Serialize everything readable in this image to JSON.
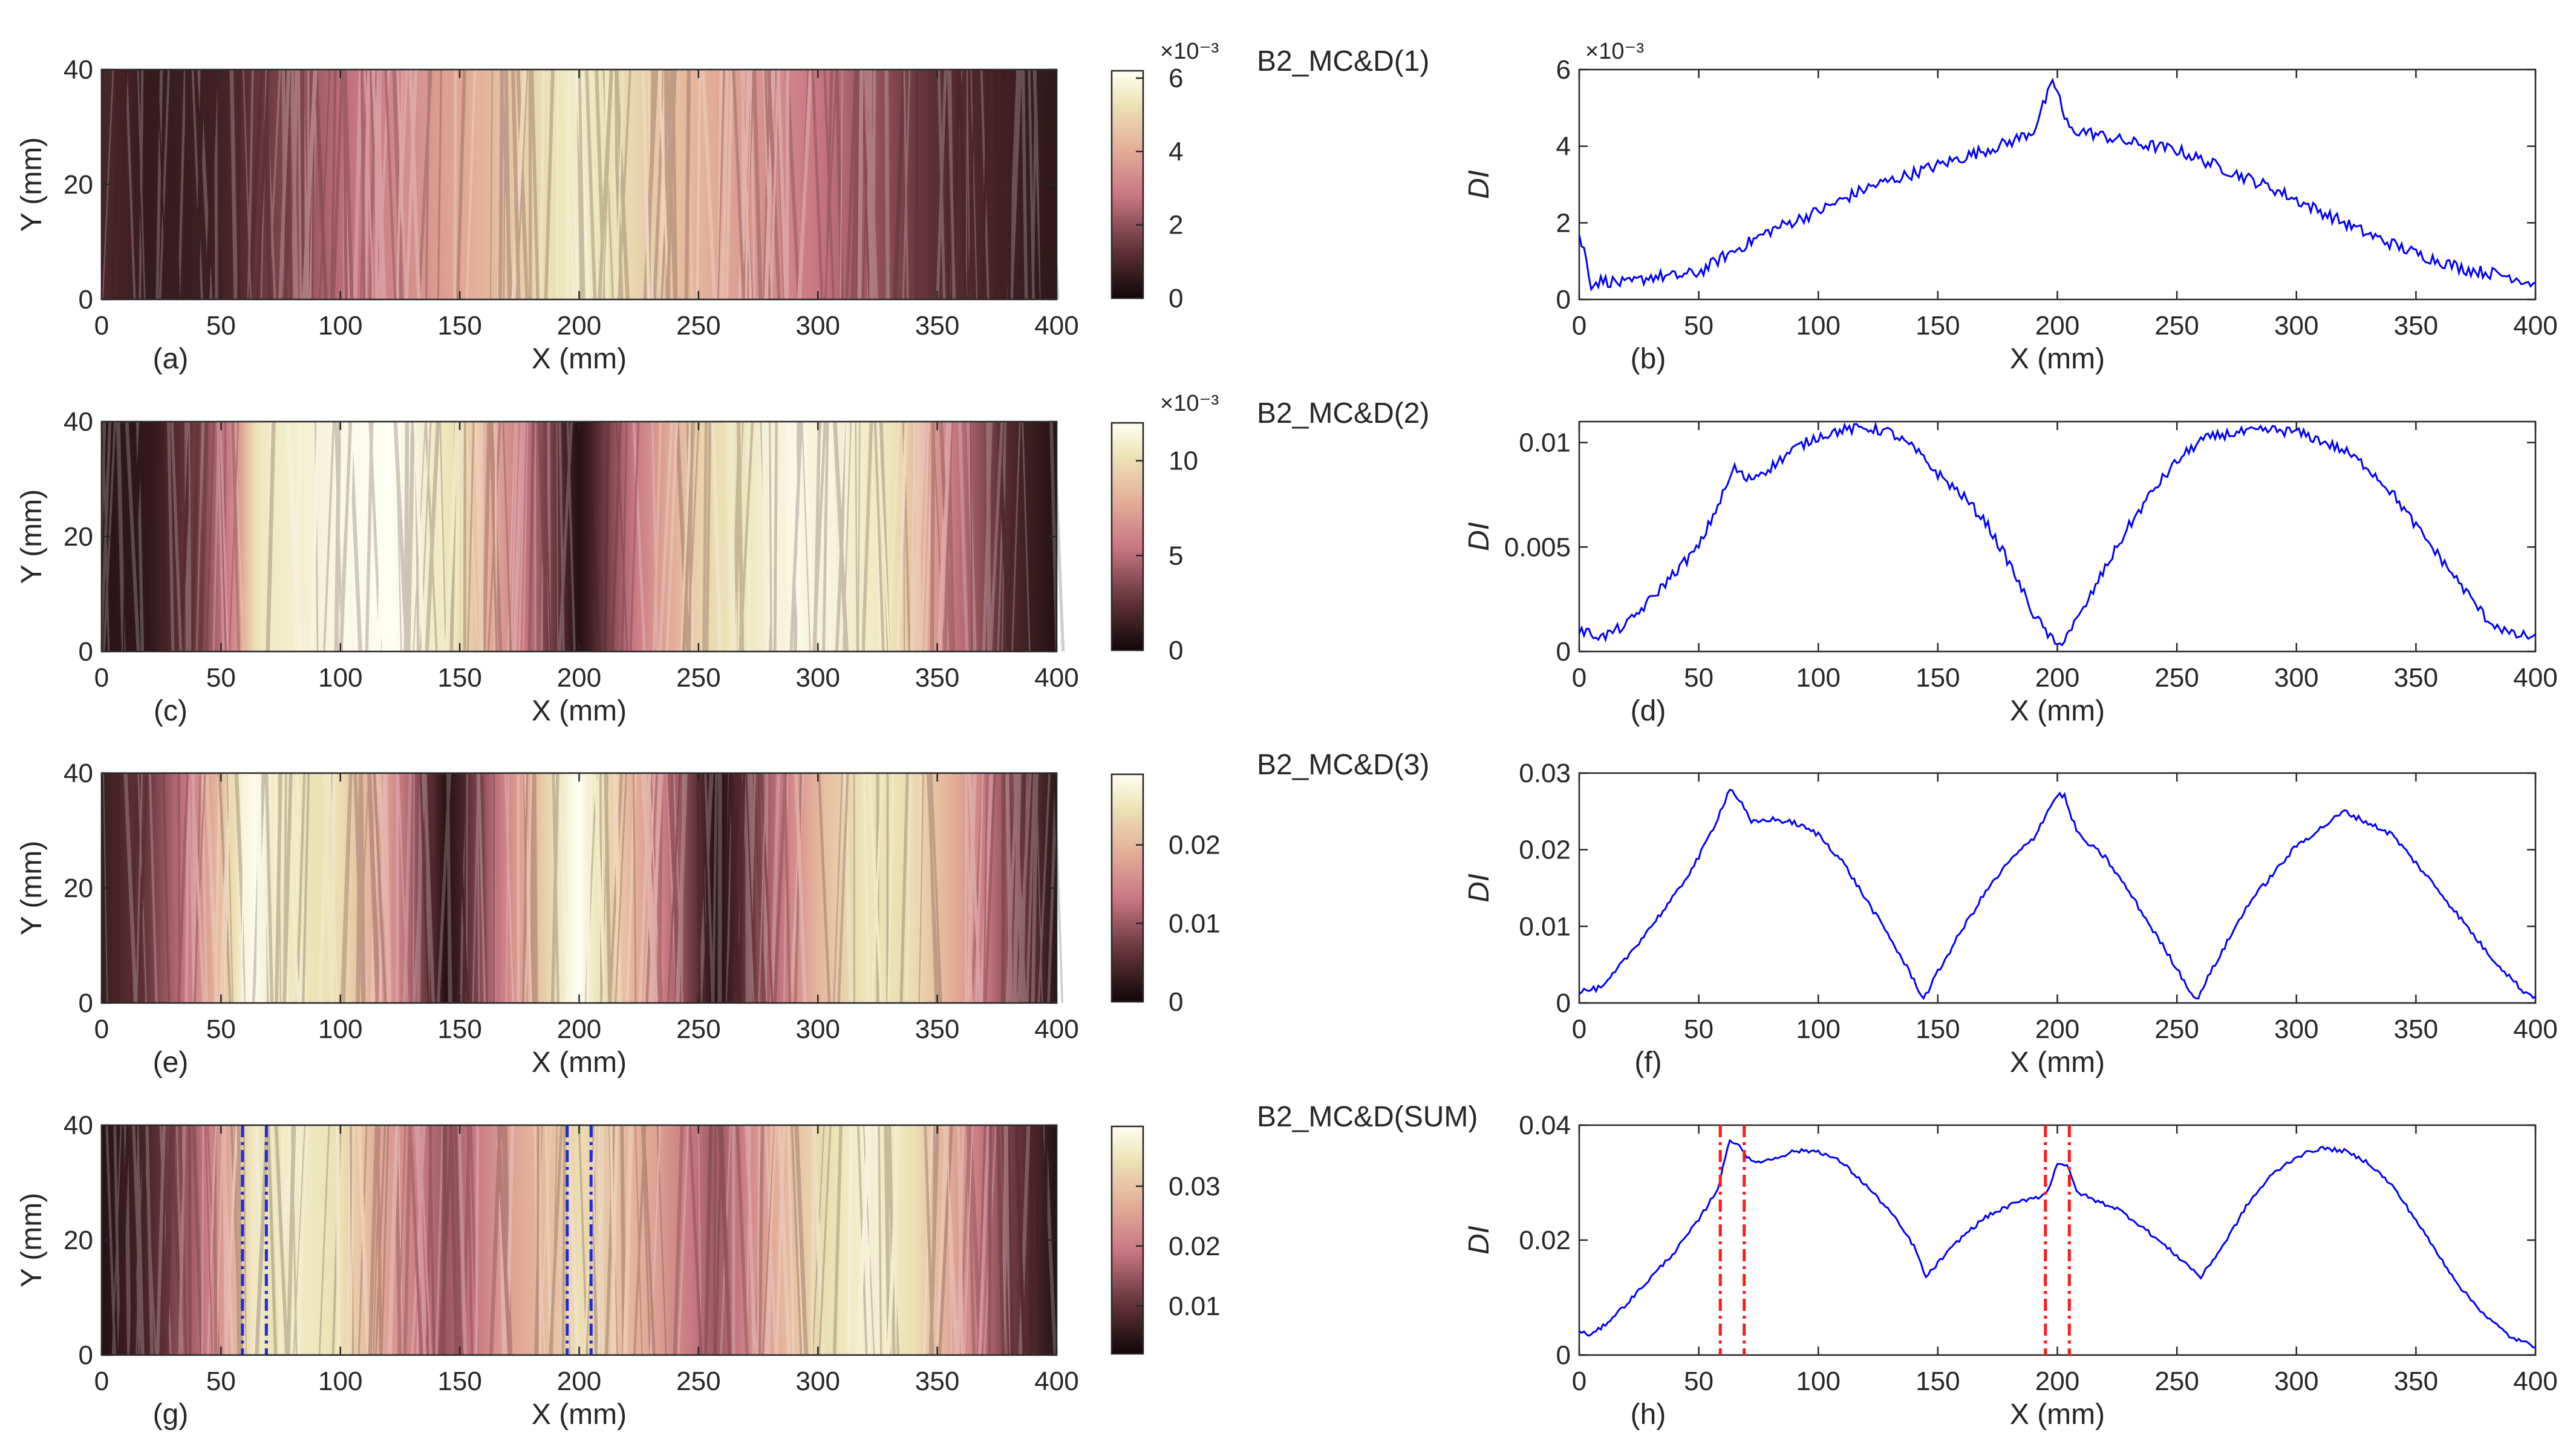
{
  "figure": {
    "colors": {
      "line": "#0000ff",
      "marker_heatmap": "#1f2bd6",
      "marker_line": "#ff1a1a",
      "axis": "#262626"
    }
  },
  "chart_data": [
    {
      "id": "a",
      "type": "heatmap",
      "panel_label": "(a)",
      "title": "",
      "xlabel": "X (mm)",
      "ylabel": "Y (mm)",
      "xlim": [
        0,
        400
      ],
      "ylim": [
        0,
        40
      ],
      "xticks": [
        0,
        50,
        100,
        150,
        200,
        250,
        300,
        350,
        400
      ],
      "yticks": [
        0,
        20,
        40
      ],
      "profile_x": [
        0,
        20,
        50,
        100,
        150,
        200,
        250,
        300,
        350,
        400
      ],
      "profile_v": [
        0.001,
        0.0006,
        0.0008,
        0.0026,
        0.0039,
        0.0056,
        0.0042,
        0.0028,
        0.0012,
        0.0005
      ],
      "colorbar": {
        "min": 0,
        "max": 0.0062,
        "ticks": [
          0,
          0.002,
          0.004,
          0.006
        ],
        "tick_labels": [
          "0",
          "2",
          "4",
          "6"
        ],
        "exponent": "×10⁻³"
      },
      "markers": []
    },
    {
      "id": "b",
      "type": "line",
      "panel_label": "(b)",
      "title": "B2_MC&D(1)",
      "xlabel": "X (mm)",
      "ylabel": "DI",
      "xlim": [
        0,
        400
      ],
      "ylim": [
        0,
        0.006
      ],
      "xticks": [
        0,
        50,
        100,
        150,
        200,
        250,
        300,
        350,
        400
      ],
      "yticks": [
        0,
        0.002,
        0.004,
        0.006
      ],
      "ytick_labels": [
        "0",
        "2",
        "4",
        "6"
      ],
      "exponent": "×10⁻³",
      "x": [
        0,
        2,
        5,
        10,
        20,
        30,
        40,
        50,
        60,
        80,
        100,
        120,
        140,
        160,
        180,
        190,
        195,
        198,
        200,
        203,
        206,
        210,
        230,
        250,
        270,
        290,
        310,
        330,
        350,
        370,
        390,
        400
      ],
      "y": [
        0.0016,
        0.0013,
        0.0004,
        0.0005,
        0.0004,
        0.0006,
        0.0006,
        0.0007,
        0.0011,
        0.0018,
        0.0023,
        0.0029,
        0.0033,
        0.0037,
        0.0041,
        0.0044,
        0.0052,
        0.0056,
        0.0055,
        0.0047,
        0.0044,
        0.0044,
        0.0041,
        0.0039,
        0.0034,
        0.0029,
        0.0023,
        0.0017,
        0.0012,
        0.0008,
        0.0006,
        0.0004
      ],
      "noise": 0.00016,
      "markers": []
    },
    {
      "id": "c",
      "type": "heatmap",
      "panel_label": "(c)",
      "title": "",
      "xlabel": "X (mm)",
      "ylabel": "Y (mm)",
      "xlim": [
        0,
        400
      ],
      "ylim": [
        0,
        40
      ],
      "xticks": [
        0,
        50,
        100,
        150,
        200,
        250,
        300,
        350,
        400
      ],
      "yticks": [
        0,
        20,
        40
      ],
      "profile_x": [
        0,
        20,
        40,
        55,
        65,
        100,
        120,
        150,
        180,
        200,
        220,
        250,
        290,
        330,
        360,
        380,
        400
      ],
      "profile_v": [
        0.0008,
        0.001,
        0.003,
        0.006,
        0.0105,
        0.0115,
        0.012,
        0.01,
        0.005,
        0.0005,
        0.005,
        0.0095,
        0.0115,
        0.0105,
        0.005,
        0.002,
        0.0006
      ],
      "colorbar": {
        "min": 0,
        "max": 0.012,
        "ticks": [
          0,
          0.005,
          0.01
        ],
        "tick_labels": [
          "0",
          "5",
          "10"
        ],
        "exponent": "×10⁻³"
      },
      "markers": []
    },
    {
      "id": "d",
      "type": "line",
      "panel_label": "(d)",
      "title": "B2_MC&D(2)",
      "xlabel": "X (mm)",
      "ylabel": "DI",
      "xlim": [
        0,
        400
      ],
      "ylim": [
        0,
        0.011
      ],
      "xticks": [
        0,
        50,
        100,
        150,
        200,
        250,
        300,
        350,
        400
      ],
      "yticks": [
        0,
        0.005,
        0.01
      ],
      "ytick_labels": [
        "0",
        "0.005",
        "0.01"
      ],
      "exponent": "",
      "x": [
        0,
        10,
        20,
        30,
        40,
        50,
        60,
        65,
        70,
        80,
        90,
        100,
        110,
        120,
        130,
        140,
        150,
        160,
        170,
        180,
        190,
        200,
        210,
        220,
        230,
        240,
        250,
        260,
        270,
        280,
        290,
        300,
        310,
        320,
        330,
        340,
        350,
        360,
        370,
        380,
        390,
        400
      ],
      "y": [
        0.001,
        0.0007,
        0.0013,
        0.0025,
        0.0038,
        0.005,
        0.0075,
        0.0088,
        0.0082,
        0.0088,
        0.0097,
        0.0103,
        0.0106,
        0.0107,
        0.0105,
        0.0097,
        0.0085,
        0.0075,
        0.0062,
        0.0042,
        0.0018,
        0.0002,
        0.0018,
        0.004,
        0.006,
        0.0077,
        0.0091,
        0.0101,
        0.0104,
        0.0105,
        0.0106,
        0.0105,
        0.0101,
        0.0096,
        0.0088,
        0.0076,
        0.006,
        0.0045,
        0.003,
        0.0015,
        0.0008,
        0.0007
      ],
      "noise": 0.00025,
      "markers": []
    },
    {
      "id": "e",
      "type": "heatmap",
      "panel_label": "(e)",
      "title": "",
      "xlabel": "X (mm)",
      "ylabel": "Y (mm)",
      "xlim": [
        0,
        400
      ],
      "ylim": [
        0,
        40
      ],
      "xticks": [
        0,
        50,
        100,
        150,
        200,
        250,
        300,
        350,
        400
      ],
      "yticks": [
        0,
        20,
        40
      ],
      "profile_x": [
        0,
        20,
        40,
        55,
        62,
        70,
        100,
        120,
        145,
        170,
        195,
        200,
        205,
        230,
        258,
        280,
        300,
        320,
        340,
        360,
        380,
        400
      ],
      "profile_v": [
        0.003,
        0.007,
        0.015,
        0.024,
        0.029,
        0.026,
        0.024,
        0.017,
        0.001,
        0.015,
        0.027,
        0.029,
        0.026,
        0.017,
        0.001,
        0.011,
        0.02,
        0.025,
        0.024,
        0.018,
        0.009,
        0.002
      ],
      "colorbar": {
        "min": 0,
        "max": 0.029,
        "ticks": [
          0,
          0.01,
          0.02
        ],
        "tick_labels": [
          "0",
          "0.01",
          "0.02"
        ],
        "exponent": ""
      },
      "markers": []
    },
    {
      "id": "f",
      "type": "line",
      "panel_label": "(f)",
      "title": "B2_MC&D(3)",
      "xlabel": "X (mm)",
      "ylabel": "DI",
      "xlim": [
        0,
        400
      ],
      "ylim": [
        0,
        0.03
      ],
      "xticks": [
        0,
        50,
        100,
        150,
        200,
        250,
        300,
        350,
        400
      ],
      "yticks": [
        0,
        0.01,
        0.02,
        0.03
      ],
      "ytick_labels": [
        "0",
        "0.01",
        "0.02",
        "0.03"
      ],
      "exponent": "",
      "x": [
        0,
        10,
        20,
        30,
        40,
        50,
        57,
        63,
        67,
        72,
        80,
        90,
        100,
        110,
        120,
        130,
        140,
        144,
        150,
        160,
        170,
        180,
        190,
        195,
        200,
        203,
        206,
        210,
        220,
        230,
        240,
        250,
        258,
        265,
        280,
        300,
        320,
        340,
        360,
        380,
        395,
        400
      ],
      "y": [
        0.0015,
        0.002,
        0.006,
        0.01,
        0.014,
        0.019,
        0.0235,
        0.028,
        0.0265,
        0.0235,
        0.024,
        0.0235,
        0.022,
        0.0185,
        0.0135,
        0.0085,
        0.003,
        0.0005,
        0.004,
        0.0095,
        0.0145,
        0.0185,
        0.0215,
        0.0245,
        0.0272,
        0.027,
        0.024,
        0.0215,
        0.019,
        0.0145,
        0.0095,
        0.0045,
        0.0003,
        0.0045,
        0.013,
        0.0205,
        0.025,
        0.022,
        0.0145,
        0.0065,
        0.0015,
        0.0008
      ],
      "noise": 0.00035,
      "markers": []
    },
    {
      "id": "g",
      "type": "heatmap",
      "panel_label": "(g)",
      "title": "",
      "xlabel": "X (mm)",
      "ylabel": "Y (mm)",
      "xlim": [
        0,
        400
      ],
      "ylim": [
        0,
        40
      ],
      "xticks": [
        0,
        50,
        100,
        150,
        200,
        250,
        300,
        350,
        400
      ],
      "yticks": [
        0,
        20,
        40
      ],
      "profile_x": [
        0,
        20,
        40,
        55,
        63,
        70,
        80,
        100,
        120,
        145,
        170,
        195,
        200,
        205,
        230,
        258,
        280,
        300,
        320,
        340,
        360,
        380,
        400
      ],
      "profile_v": [
        0.004,
        0.008,
        0.017,
        0.027,
        0.036,
        0.034,
        0.036,
        0.034,
        0.025,
        0.015,
        0.025,
        0.031,
        0.034,
        0.032,
        0.026,
        0.015,
        0.026,
        0.033,
        0.037,
        0.034,
        0.024,
        0.012,
        0.004
      ],
      "colorbar": {
        "min": 0.002,
        "max": 0.04,
        "ticks": [
          0.01,
          0.02,
          0.03
        ],
        "tick_labels": [
          "0.01",
          "0.02",
          "0.03"
        ],
        "exponent": ""
      },
      "markers": [
        59,
        69,
        195,
        205
      ]
    },
    {
      "id": "h",
      "type": "line",
      "panel_label": "(h)",
      "title": "B2_MC&D(SUM)",
      "xlabel": "X (mm)",
      "ylabel": "DI",
      "xlim": [
        0,
        400
      ],
      "ylim": [
        0,
        0.04
      ],
      "xticks": [
        0,
        50,
        100,
        150,
        200,
        250,
        300,
        350,
        400
      ],
      "yticks": [
        0,
        0.02,
        0.04
      ],
      "ytick_labels": [
        "0",
        "0.02",
        "0.04"
      ],
      "exponent": "",
      "x": [
        0,
        5,
        10,
        20,
        30,
        40,
        50,
        58,
        63,
        67,
        72,
        80,
        90,
        100,
        110,
        120,
        130,
        140,
        145,
        150,
        160,
        170,
        180,
        190,
        193,
        196,
        200,
        204,
        208,
        215,
        225,
        235,
        245,
        255,
        260,
        270,
        280,
        290,
        300,
        310,
        320,
        330,
        340,
        350,
        360,
        370,
        380,
        390,
        400
      ],
      "y": [
        0.004,
        0.0035,
        0.005,
        0.009,
        0.0135,
        0.018,
        0.0235,
        0.029,
        0.0375,
        0.0365,
        0.0335,
        0.034,
        0.0355,
        0.0355,
        0.0335,
        0.0295,
        0.025,
        0.019,
        0.0135,
        0.016,
        0.0205,
        0.024,
        0.026,
        0.0275,
        0.0275,
        0.0285,
        0.0335,
        0.033,
        0.0285,
        0.027,
        0.0255,
        0.0225,
        0.019,
        0.0155,
        0.0135,
        0.0195,
        0.0265,
        0.0315,
        0.0345,
        0.036,
        0.0355,
        0.0335,
        0.0295,
        0.0235,
        0.017,
        0.011,
        0.0065,
        0.003,
        0.0015
      ],
      "noise": 0.00035,
      "markers": [
        59,
        69,
        195,
        205
      ]
    }
  ]
}
